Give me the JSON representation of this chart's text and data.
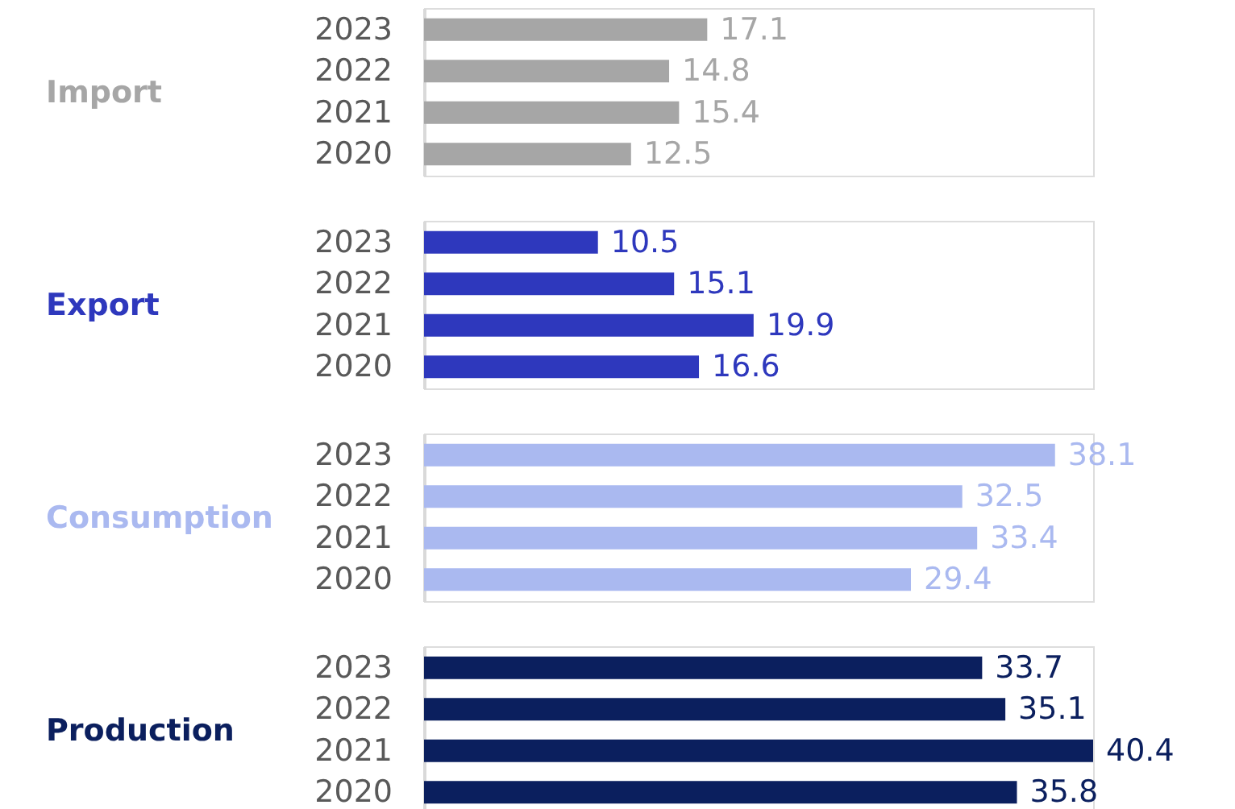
{
  "chart_data": [
    {
      "type": "bar",
      "orientation": "horizontal",
      "ylabel": "Import",
      "categories": [
        "2023",
        "2022",
        "2021",
        "2020"
      ],
      "values": [
        17.1,
        14.8,
        15.4,
        12.5
      ],
      "color": "#a6a6a6",
      "data_labels": true,
      "grid": false,
      "tick_labels": "y"
    },
    {
      "type": "bar",
      "orientation": "horizontal",
      "ylabel": "Export",
      "categories": [
        "2023",
        "2022",
        "2021",
        "2020"
      ],
      "values": [
        10.5,
        15.1,
        19.9,
        16.6
      ],
      "color": "#2e38bd",
      "data_labels": true,
      "grid": false,
      "tick_labels": "y"
    },
    {
      "type": "bar",
      "orientation": "horizontal",
      "ylabel": "Consumption",
      "categories": [
        "2023",
        "2022",
        "2021",
        "2020"
      ],
      "values": [
        38.1,
        32.5,
        33.4,
        29.4
      ],
      "color": "#aab9f0",
      "data_labels": true,
      "grid": false,
      "tick_labels": "y"
    },
    {
      "type": "bar",
      "orientation": "horizontal",
      "ylabel": "Production",
      "categories": [
        "2023",
        "2022",
        "2021",
        "2020"
      ],
      "values": [
        33.7,
        35.1,
        40.4,
        35.8
      ],
      "color": "#0b1f5e",
      "data_labels": true,
      "grid": false,
      "tick_labels": "y"
    }
  ]
}
